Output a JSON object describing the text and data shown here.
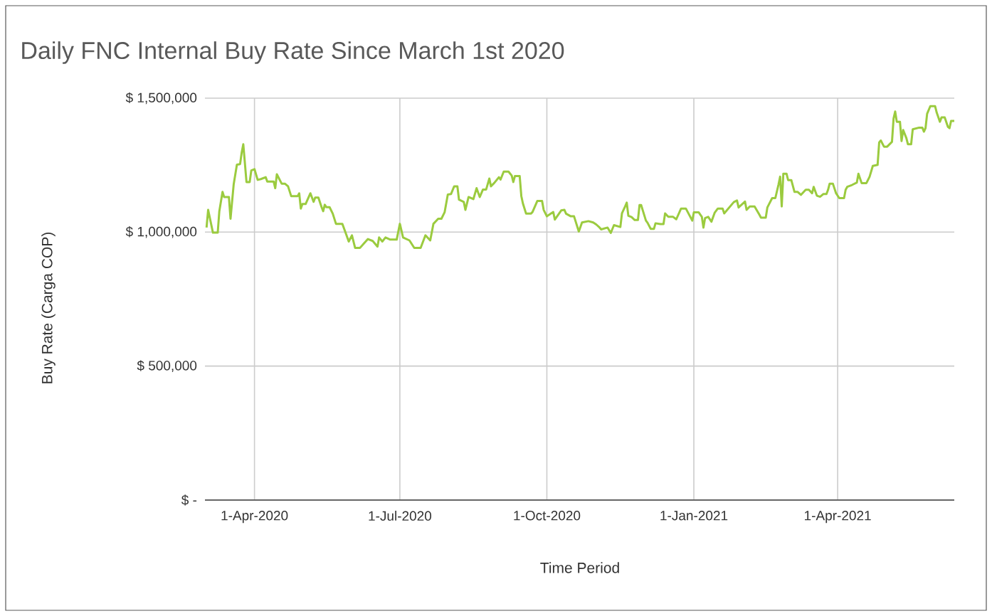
{
  "chart_data": {
    "type": "line",
    "title": "Daily FNC Internal Buy Rate Since March 1st 2020",
    "xlabel": "Time Period",
    "ylabel": "Buy Rate (Carga COP)",
    "grid": true,
    "xlim": [
      "2020-03-01",
      "2021-06-13"
    ],
    "xticks": [
      {
        "value": "2020-04-01",
        "label": "1-Apr-2020"
      },
      {
        "value": "2020-07-01",
        "label": "1-Jul-2020"
      },
      {
        "value": "2020-10-01",
        "label": "1-Oct-2020"
      },
      {
        "value": "2021-01-01",
        "label": "1-Jan-2021"
      },
      {
        "value": "2021-04-01",
        "label": "1-Apr-2021"
      }
    ],
    "ylim": [
      0,
      1500000
    ],
    "yticks": [
      {
        "value": 0,
        "label": "$ -"
      },
      {
        "value": 500000,
        "label": "$ 500,000"
      },
      {
        "value": 1000000,
        "label": "$ 1,000,000"
      },
      {
        "value": 1500000,
        "label": "$ 1,500,000"
      }
    ],
    "x": [
      "2020-03-02",
      "2020-03-03",
      "2020-03-06",
      "2020-03-09",
      "2020-03-10",
      "2020-03-12",
      "2020-03-13",
      "2020-03-16",
      "2020-03-17",
      "2020-03-19",
      "2020-03-21",
      "2020-03-23",
      "2020-03-24",
      "2020-03-25",
      "2020-03-27",
      "2020-03-29",
      "2020-03-30",
      "2020-04-01",
      "2020-04-03",
      "2020-04-05",
      "2020-04-08",
      "2020-04-09",
      "2020-04-13",
      "2020-04-14",
      "2020-04-15",
      "2020-04-18",
      "2020-04-20",
      "2020-04-22",
      "2020-04-24",
      "2020-04-28",
      "2020-04-29",
      "2020-04-30",
      "2020-05-01",
      "2020-05-03",
      "2020-05-06",
      "2020-05-08",
      "2020-05-09",
      "2020-05-11",
      "2020-05-13",
      "2020-05-14",
      "2020-05-15",
      "2020-05-16",
      "2020-05-18",
      "2020-05-20",
      "2020-05-22",
      "2020-05-26",
      "2020-05-28",
      "2020-05-30",
      "2020-06-01",
      "2020-06-03",
      "2020-06-06",
      "2020-06-11",
      "2020-06-14",
      "2020-06-17",
      "2020-06-18",
      "2020-06-20",
      "2020-06-22",
      "2020-06-25",
      "2020-06-29",
      "2020-07-01",
      "2020-07-03",
      "2020-07-07",
      "2020-07-10",
      "2020-07-14",
      "2020-07-17",
      "2020-07-20",
      "2020-07-22",
      "2020-07-25",
      "2020-07-27",
      "2020-07-29",
      "2020-07-31",
      "2020-08-02",
      "2020-08-04",
      "2020-08-06",
      "2020-08-07",
      "2020-08-10",
      "2020-08-11",
      "2020-08-13",
      "2020-08-16",
      "2020-08-18",
      "2020-08-20",
      "2020-08-22",
      "2020-08-24",
      "2020-08-26",
      "2020-08-27",
      "2020-08-29",
      "2020-09-01",
      "2020-09-02",
      "2020-09-04",
      "2020-09-07",
      "2020-09-09",
      "2020-09-10",
      "2020-09-11",
      "2020-09-14",
      "2020-09-15",
      "2020-09-16",
      "2020-09-18",
      "2020-09-21",
      "2020-09-22",
      "2020-09-25",
      "2020-09-28",
      "2020-09-29",
      "2020-10-01",
      "2020-10-05",
      "2020-10-06",
      "2020-10-10",
      "2020-10-12",
      "2020-10-13",
      "2020-10-16",
      "2020-10-18",
      "2020-10-21",
      "2020-10-23",
      "2020-10-27",
      "2020-10-30",
      "2020-11-01",
      "2020-11-03",
      "2020-11-04",
      "2020-11-08",
      "2020-11-10",
      "2020-11-12",
      "2020-11-16",
      "2020-11-17",
      "2020-11-19",
      "2020-11-20",
      "2020-11-21",
      "2020-11-23",
      "2020-11-25",
      "2020-11-27",
      "2020-11-28",
      "2020-11-29",
      "2020-12-02",
      "2020-12-03",
      "2020-12-05",
      "2020-12-07",
      "2020-12-08",
      "2020-12-11",
      "2020-12-13",
      "2020-12-14",
      "2020-12-16",
      "2020-12-19",
      "2020-12-21",
      "2020-12-24",
      "2020-12-27",
      "2020-12-31",
      "2021-01-01",
      "2021-01-04",
      "2021-01-06",
      "2021-01-07",
      "2021-01-08",
      "2021-01-10",
      "2021-01-12",
      "2021-01-14",
      "2021-01-16",
      "2021-01-19",
      "2021-01-20",
      "2021-01-26",
      "2021-01-28",
      "2021-01-29",
      "2021-02-02",
      "2021-02-03",
      "2021-02-05",
      "2021-02-08",
      "2021-02-11",
      "2021-02-12",
      "2021-02-15",
      "2021-02-16",
      "2021-02-19",
      "2021-02-21",
      "2021-02-23",
      "2021-02-24",
      "2021-02-25",
      "2021-02-26",
      "2021-02-28",
      "2021-03-01",
      "2021-03-03",
      "2021-03-05",
      "2021-03-07",
      "2021-03-09",
      "2021-03-12",
      "2021-03-14",
      "2021-03-16",
      "2021-03-17",
      "2021-03-19",
      "2021-03-21",
      "2021-03-23",
      "2021-03-25",
      "2021-03-26",
      "2021-03-27",
      "2021-03-29",
      "2021-03-31",
      "2021-04-02",
      "2021-04-05",
      "2021-04-06",
      "2021-04-07",
      "2021-04-10",
      "2021-04-13",
      "2021-04-14",
      "2021-04-16",
      "2021-04-19",
      "2021-04-21",
      "2021-04-23",
      "2021-04-26",
      "2021-04-27",
      "2021-04-28",
      "2021-04-30",
      "2021-05-02",
      "2021-05-05",
      "2021-05-06",
      "2021-05-07",
      "2021-05-08",
      "2021-05-10",
      "2021-05-11",
      "2021-05-12",
      "2021-05-14",
      "2021-05-15",
      "2021-05-17",
      "2021-05-18",
      "2021-05-22",
      "2021-05-24",
      "2021-05-25",
      "2021-05-26",
      "2021-05-27",
      "2021-05-29",
      "2021-06-01",
      "2021-06-02",
      "2021-06-04",
      "2021-06-05",
      "2021-06-07",
      "2021-06-09",
      "2021-06-10",
      "2021-06-11",
      "2021-06-13"
    ],
    "series": [
      {
        "color": "#9bcb3f",
        "values": [
          1017000,
          1083000,
          998000,
          998000,
          1078000,
          1150000,
          1131000,
          1131000,
          1050000,
          1179000,
          1252000,
          1254000,
          1297000,
          1328000,
          1187000,
          1187000,
          1230000,
          1235000,
          1195000,
          1198000,
          1205000,
          1189000,
          1189000,
          1164000,
          1216000,
          1181000,
          1181000,
          1171000,
          1134000,
          1134000,
          1145000,
          1088000,
          1105000,
          1105000,
          1145000,
          1113000,
          1129000,
          1129000,
          1093000,
          1078000,
          1102000,
          1093000,
          1093000,
          1069000,
          1031000,
          1031000,
          998000,
          965000,
          988000,
          941000,
          941000,
          974000,
          967000,
          946000,
          980000,
          965000,
          980000,
          972000,
          972000,
          1031000,
          980000,
          969000,
          941000,
          941000,
          988000,
          969000,
          1031000,
          1050000,
          1050000,
          1074000,
          1140000,
          1142000,
          1171000,
          1171000,
          1121000,
          1113000,
          1083000,
          1131000,
          1123000,
          1164000,
          1131000,
          1159000,
          1159000,
          1200000,
          1171000,
          1183000,
          1205000,
          1196000,
          1226000,
          1226000,
          1211000,
          1187000,
          1209000,
          1209000,
          1135000,
          1107000,
          1069000,
          1069000,
          1075000,
          1116000,
          1116000,
          1083000,
          1059000,
          1075000,
          1047000,
          1081000,
          1083000,
          1069000,
          1059000,
          1059000,
          1002000,
          1036000,
          1041000,
          1036000,
          1028000,
          1017000,
          1010000,
          1017000,
          997000,
          1026000,
          1019000,
          1070000,
          1096000,
          1110000,
          1061000,
          1056000,
          1045000,
          1045000,
          1101000,
          1101000,
          1043000,
          1035000,
          1012000,
          1012000,
          1033000,
          1030000,
          1030000,
          1070000,
          1057000,
          1057000,
          1048000,
          1088000,
          1088000,
          1043000,
          1074000,
          1074000,
          1057000,
          1017000,
          1052000,
          1057000,
          1039000,
          1072000,
          1088000,
          1088000,
          1070000,
          1112000,
          1118000,
          1092000,
          1114000,
          1083000,
          1096000,
          1096000,
          1065000,
          1054000,
          1054000,
          1092000,
          1127000,
          1127000,
          1178000,
          1207000,
          1096000,
          1218000,
          1218000,
          1194000,
          1194000,
          1150000,
          1150000,
          1139000,
          1158000,
          1158000,
          1145000,
          1169000,
          1136000,
          1132000,
          1142000,
          1142000,
          1158000,
          1181000,
          1181000,
          1145000,
          1127000,
          1127000,
          1158000,
          1169000,
          1176000,
          1185000,
          1218000,
          1183000,
          1183000,
          1207000,
          1247000,
          1251000,
          1335000,
          1342000,
          1319000,
          1319000,
          1337000,
          1424000,
          1450000,
          1412000,
          1412000,
          1340000,
          1381000,
          1351000,
          1328000,
          1328000,
          1384000,
          1390000,
          1390000,
          1375000,
          1388000,
          1442000,
          1470000,
          1470000,
          1446000,
          1412000,
          1428000,
          1428000,
          1393000,
          1388000,
          1415000,
          1415000
        ]
      }
    ]
  }
}
